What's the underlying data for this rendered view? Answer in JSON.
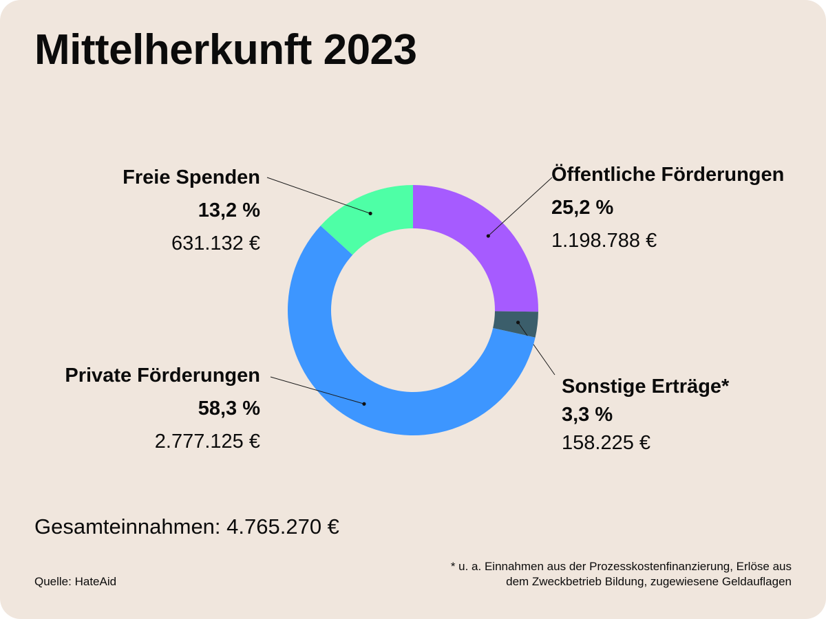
{
  "title": "Mittelherkunft 2023",
  "chart_data": {
    "type": "pie",
    "title": "Mittelherkunft 2023",
    "slices": [
      {
        "name": "Öffentliche Förderungen",
        "percent": 25.2,
        "percent_label": "25,2 %",
        "amount_label": "1.198.788 €",
        "value": 1198788,
        "color": "#a65bff"
      },
      {
        "name": "Sonstige Erträge*",
        "percent": 3.3,
        "percent_label": "3,3 %",
        "amount_label": "158.225 €",
        "value": 158225,
        "color": "#3b5e6b"
      },
      {
        "name": "Private Förderungen",
        "percent": 58.3,
        "percent_label": "58,3 %",
        "amount_label": "2.777.125 €",
        "value": 2777125,
        "color": "#3d96ff"
      },
      {
        "name": "Freie Spenden",
        "percent": 13.2,
        "percent_label": "13,2 %",
        "amount_label": "631.132 €",
        "value": 631132,
        "color": "#4effa6"
      }
    ]
  },
  "total_label": "Gesamteinnahmen: 4.765.270 €",
  "footnote_line1": "* u. a. Einnahmen aus der Prozesskostenfinanzierung, Erlöse aus",
  "footnote_line2": "dem Zweckbetrieb Bildung, zugewiesene Geldauflagen",
  "source": "Quelle: HateAid"
}
